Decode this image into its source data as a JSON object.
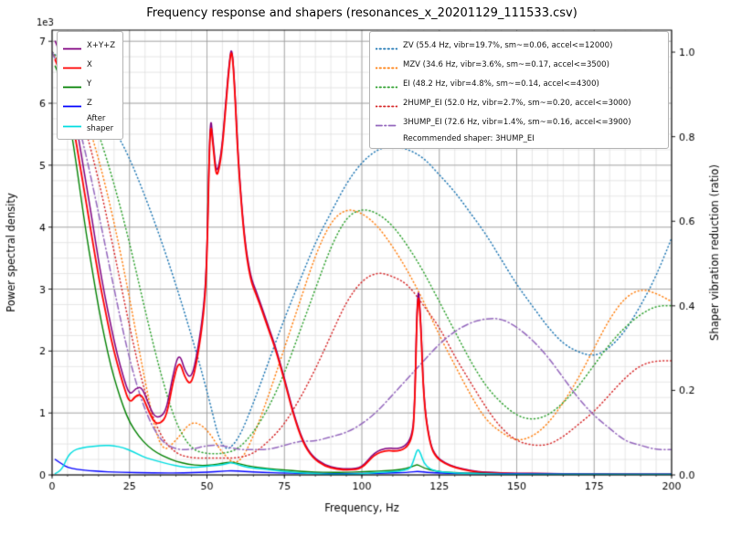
{
  "title": "Frequency response and shapers (resonances_x_20201129_111533.csv)",
  "axes": {
    "x": {
      "label": "Frequency, Hz",
      "min": 0,
      "max": 200,
      "minor_step": 5,
      "tick_values": [
        0,
        25,
        50,
        75,
        100,
        125,
        150,
        175,
        200
      ],
      "tick_labels": [
        "0",
        "25",
        "50",
        "75",
        "100",
        "125",
        "150",
        "175",
        "200"
      ]
    },
    "y_left": {
      "label": "Power spectral density",
      "offset_text": "1e3",
      "min": 0,
      "max": 7180,
      "minor_step": 250,
      "tick_values": [
        0,
        1000,
        2000,
        3000,
        4000,
        5000,
        6000,
        7000
      ],
      "tick_labels": [
        "0",
        "1",
        "2",
        "3",
        "4",
        "5",
        "6",
        "7"
      ]
    },
    "y_right": {
      "label": "Shaper vibration reduction (ratio)",
      "min": 0,
      "max": 1.052,
      "tick_values": [
        0,
        0.2,
        0.4,
        0.6,
        0.8,
        1.0
      ],
      "tick_labels": [
        "0.0",
        "0.2",
        "0.4",
        "0.6",
        "0.8",
        "1.0"
      ]
    }
  },
  "legend_psd": {
    "items": [
      {
        "label": "X+Y+Z",
        "color": "#800080",
        "dash": "solid"
      },
      {
        "label": "X",
        "color": "#ff0000",
        "dash": "solid"
      },
      {
        "label": "Y",
        "color": "#008000",
        "dash": "solid"
      },
      {
        "label": "Z",
        "color": "#0000ff",
        "dash": "solid"
      },
      {
        "label": "After\nshaper",
        "color": "#00dde0",
        "dash": "solid"
      }
    ]
  },
  "legend_shapers": {
    "items": [
      {
        "label": "ZV (55.4 Hz, vibr=19.7%, sm~=0.06, accel<=12000)",
        "color": "#1f77b4",
        "dash": "dotted"
      },
      {
        "label": "MZV (34.6 Hz, vibr=3.6%, sm~=0.17, accel<=3500)",
        "color": "#ff7f0e",
        "dash": "dotted"
      },
      {
        "label": "EI (48.2 Hz, vibr=4.8%, sm~=0.14, accel<=4300)",
        "color": "#2ca02c",
        "dash": "dotted"
      },
      {
        "label": "2HUMP_EI (52.0 Hz, vibr=2.7%, sm~=0.20, accel<=3000)",
        "color": "#d62728",
        "dash": "dotted"
      },
      {
        "label": "3HUMP_EI (72.6 Hz, vibr=1.4%, sm~=0.16, accel<=3900)",
        "color": "#9467bd",
        "dash": "dashdot"
      }
    ],
    "footer": "Recommended shaper: 3HUMP_EI"
  },
  "chart_data": {
    "type": "line",
    "title": "Frequency response and shapers (resonances_x_20201129_111533.csv)",
    "xlabel": "Frequency, Hz",
    "ylabel_left": "Power spectral density (1e3)",
    "ylabel_right": "Shaper vibration reduction (ratio)",
    "xlim": [
      0,
      200
    ],
    "ylim_left": [
      0,
      7180
    ],
    "ylim_right": [
      0,
      1.052
    ],
    "grid": "major+minor",
    "series": [
      {
        "name": "ZV",
        "axis": "right",
        "color": "#1f77b4",
        "dash": "dotted",
        "width": 1.5,
        "x": [
          0,
          5,
          10,
          15,
          20,
          25,
          30,
          35,
          40,
          45,
          50,
          55,
          60,
          65,
          70,
          75,
          80,
          85,
          90,
          95,
          100,
          105,
          110,
          115,
          120,
          125,
          130,
          135,
          140,
          145,
          150,
          155,
          160,
          165,
          170,
          175,
          180,
          185,
          190,
          195,
          200
        ],
        "y": [
          1.0,
          0.97,
          0.93,
          0.88,
          0.82,
          0.75,
          0.66,
          0.56,
          0.45,
          0.33,
          0.2,
          0.05,
          0.08,
          0.17,
          0.27,
          0.37,
          0.46,
          0.55,
          0.62,
          0.69,
          0.74,
          0.77,
          0.78,
          0.77,
          0.75,
          0.71,
          0.67,
          0.62,
          0.57,
          0.51,
          0.45,
          0.4,
          0.35,
          0.31,
          0.29,
          0.28,
          0.3,
          0.34,
          0.4,
          0.47,
          0.56
        ]
      },
      {
        "name": "MZV",
        "axis": "right",
        "color": "#ff7f0e",
        "dash": "dotted",
        "width": 1.5,
        "x": [
          0,
          5,
          10,
          15,
          20,
          25,
          30,
          35,
          40,
          45,
          50,
          55,
          60,
          65,
          70,
          75,
          80,
          85,
          90,
          95,
          100,
          105,
          110,
          115,
          120,
          125,
          130,
          135,
          140,
          145,
          150,
          155,
          160,
          165,
          170,
          175,
          180,
          185,
          190,
          195,
          200
        ],
        "y": [
          1.0,
          0.95,
          0.87,
          0.75,
          0.6,
          0.42,
          0.22,
          0.05,
          0.08,
          0.13,
          0.11,
          0.05,
          0.02,
          0.09,
          0.19,
          0.3,
          0.41,
          0.52,
          0.6,
          0.63,
          0.62,
          0.59,
          0.54,
          0.48,
          0.41,
          0.33,
          0.26,
          0.19,
          0.13,
          0.1,
          0.08,
          0.09,
          0.12,
          0.17,
          0.23,
          0.3,
          0.37,
          0.42,
          0.44,
          0.43,
          0.41
        ]
      },
      {
        "name": "EI",
        "axis": "right",
        "color": "#2ca02c",
        "dash": "dotted",
        "width": 1.5,
        "x": [
          0,
          5,
          10,
          15,
          20,
          25,
          30,
          35,
          40,
          45,
          50,
          55,
          60,
          65,
          70,
          75,
          80,
          85,
          90,
          95,
          100,
          105,
          110,
          115,
          120,
          125,
          130,
          135,
          140,
          145,
          150,
          155,
          160,
          165,
          170,
          175,
          180,
          185,
          190,
          195,
          200
        ],
        "y": [
          1.0,
          0.96,
          0.9,
          0.81,
          0.69,
          0.55,
          0.39,
          0.24,
          0.12,
          0.06,
          0.05,
          0.05,
          0.06,
          0.1,
          0.16,
          0.24,
          0.34,
          0.44,
          0.54,
          0.61,
          0.63,
          0.62,
          0.59,
          0.54,
          0.48,
          0.41,
          0.34,
          0.27,
          0.21,
          0.17,
          0.14,
          0.13,
          0.14,
          0.17,
          0.21,
          0.26,
          0.31,
          0.35,
          0.38,
          0.4,
          0.4
        ]
      },
      {
        "name": "2HUMP_EI",
        "axis": "right",
        "color": "#d62728",
        "dash": "dotted",
        "width": 1.5,
        "x": [
          0,
          5,
          10,
          15,
          20,
          25,
          30,
          35,
          40,
          45,
          50,
          55,
          60,
          65,
          70,
          75,
          80,
          85,
          90,
          95,
          100,
          105,
          110,
          115,
          120,
          125,
          130,
          135,
          140,
          145,
          150,
          155,
          160,
          165,
          170,
          175,
          180,
          185,
          190,
          195,
          200
        ],
        "y": [
          1.0,
          0.94,
          0.84,
          0.7,
          0.53,
          0.35,
          0.19,
          0.09,
          0.05,
          0.04,
          0.04,
          0.04,
          0.04,
          0.05,
          0.08,
          0.12,
          0.18,
          0.25,
          0.33,
          0.41,
          0.46,
          0.48,
          0.47,
          0.45,
          0.4,
          0.35,
          0.28,
          0.22,
          0.16,
          0.11,
          0.08,
          0.07,
          0.07,
          0.09,
          0.12,
          0.15,
          0.19,
          0.23,
          0.26,
          0.27,
          0.27
        ]
      },
      {
        "name": "3HUMP_EI",
        "axis": "right",
        "color": "#9467bd",
        "dash": "dashdot",
        "width": 1.5,
        "x": [
          0,
          5,
          10,
          15,
          20,
          25,
          30,
          35,
          40,
          45,
          50,
          55,
          60,
          65,
          70,
          75,
          80,
          85,
          90,
          95,
          100,
          105,
          110,
          115,
          120,
          125,
          130,
          135,
          140,
          145,
          150,
          155,
          160,
          165,
          170,
          175,
          180,
          185,
          190,
          195,
          200
        ],
        "y": [
          1.0,
          0.92,
          0.79,
          0.62,
          0.44,
          0.27,
          0.15,
          0.08,
          0.06,
          0.06,
          0.07,
          0.07,
          0.06,
          0.06,
          0.06,
          0.07,
          0.08,
          0.08,
          0.09,
          0.1,
          0.12,
          0.15,
          0.19,
          0.23,
          0.27,
          0.31,
          0.34,
          0.36,
          0.37,
          0.37,
          0.35,
          0.32,
          0.28,
          0.23,
          0.18,
          0.14,
          0.11,
          0.08,
          0.07,
          0.06,
          0.06
        ]
      },
      {
        "name": "X+Y+Z",
        "axis": "left",
        "color": "#800080",
        "dash": "solid",
        "width": 1.5,
        "x": [
          1,
          3,
          5,
          7,
          9,
          11,
          13,
          15,
          17,
          19,
          21,
          23,
          25,
          27,
          29,
          31,
          33,
          35,
          37,
          39,
          41,
          43,
          45,
          47,
          49,
          50,
          51,
          52,
          53,
          54,
          55,
          56,
          57,
          58,
          59,
          60,
          62,
          64,
          66,
          68,
          70,
          72,
          75,
          78,
          81,
          84,
          88,
          92,
          96,
          100,
          104,
          108,
          111,
          114,
          116,
          117,
          118,
          119,
          120,
          122,
          124,
          127,
          130,
          135,
          140,
          150,
          160,
          180,
          200
        ],
        "y": [
          7000,
          6800,
          6400,
          5900,
          5300,
          4700,
          4100,
          3450,
          2900,
          2400,
          1950,
          1580,
          1280,
          1400,
          1420,
          1160,
          940,
          930,
          1060,
          1620,
          1990,
          1660,
          1550,
          2000,
          2700,
          3500,
          5900,
          5380,
          4870,
          5020,
          5370,
          5970,
          6570,
          6970,
          6270,
          5160,
          3860,
          3210,
          2950,
          2670,
          2370,
          2090,
          1570,
          980,
          545,
          300,
          160,
          105,
          95,
          118,
          365,
          440,
          420,
          460,
          610,
          960,
          3180,
          2560,
          1190,
          505,
          295,
          190,
          128,
          68,
          42,
          28,
          20,
          13,
          10
        ]
      },
      {
        "name": "X",
        "axis": "left",
        "color": "#ff0000",
        "dash": "solid",
        "width": 1.8,
        "x": [
          1,
          3,
          5,
          7,
          9,
          11,
          13,
          15,
          17,
          19,
          21,
          23,
          25,
          27,
          29,
          31,
          33,
          35,
          37,
          39,
          41,
          43,
          45,
          47,
          49,
          50,
          51,
          52,
          53,
          54,
          55,
          56,
          57,
          58,
          59,
          60,
          62,
          64,
          66,
          68,
          70,
          72,
          75,
          78,
          81,
          84,
          88,
          92,
          96,
          100,
          104,
          108,
          111,
          114,
          116,
          117,
          118,
          119,
          120,
          122,
          124,
          127,
          130,
          135,
          140,
          150,
          160,
          180,
          200
        ],
        "y": [
          6700,
          6500,
          6100,
          5600,
          5000,
          4400,
          3800,
          3200,
          2700,
          2200,
          1800,
          1450,
          1150,
          1280,
          1300,
          1050,
          840,
          830,
          950,
          1500,
          1870,
          1550,
          1450,
          1900,
          2600,
          3400,
          5800,
          5300,
          4800,
          4950,
          5300,
          5900,
          6500,
          6950,
          6200,
          5100,
          3800,
          3150,
          2900,
          2620,
          2330,
          2050,
          1530,
          950,
          520,
          280,
          140,
          90,
          80,
          100,
          330,
          400,
          380,
          420,
          560,
          900,
          3080,
          2500,
          1150,
          480,
          280,
          180,
          120,
          60,
          35,
          22,
          15,
          10,
          8
        ]
      },
      {
        "name": "Y",
        "axis": "left",
        "color": "#008000",
        "dash": "solid",
        "width": 1.4,
        "x": [
          1,
          3,
          5,
          7,
          9,
          11,
          13,
          15,
          17,
          19,
          21,
          23,
          25,
          28,
          31,
          34,
          37,
          40,
          44,
          48,
          52,
          55,
          58,
          61,
          65,
          70,
          75,
          80,
          85,
          90,
          95,
          100,
          105,
          110,
          114,
          117,
          118,
          120,
          124,
          128,
          135,
          145,
          160,
          180,
          200
        ],
        "y": [
          6600,
          6400,
          5900,
          5300,
          4600,
          3900,
          3300,
          2700,
          2200,
          1750,
          1400,
          1100,
          850,
          620,
          460,
          350,
          280,
          220,
          170,
          150,
          160,
          190,
          210,
          170,
          130,
          100,
          80,
          60,
          45,
          40,
          42,
          50,
          60,
          75,
          95,
          150,
          170,
          110,
          60,
          40,
          28,
          20,
          14,
          10,
          8
        ]
      },
      {
        "name": "Z",
        "axis": "left",
        "color": "#0000ff",
        "dash": "solid",
        "width": 1.4,
        "x": [
          1,
          3,
          5,
          8,
          12,
          16,
          20,
          25,
          30,
          35,
          40,
          45,
          50,
          55,
          58,
          62,
          68,
          75,
          85,
          95,
          105,
          115,
          118,
          122,
          130,
          145,
          165,
          200
        ],
        "y": [
          250,
          180,
          120,
          90,
          70,
          55,
          45,
          40,
          35,
          32,
          30,
          35,
          45,
          60,
          70,
          55,
          40,
          30,
          22,
          20,
          25,
          40,
          60,
          35,
          25,
          18,
          12,
          10
        ]
      },
      {
        "name": "After shaper",
        "axis": "left",
        "color": "#00dde0",
        "dash": "solid",
        "width": 1.5,
        "x": [
          1,
          3,
          5,
          7,
          9,
          11,
          14,
          17,
          20,
          23,
          26,
          29,
          32,
          35,
          38,
          41,
          44,
          47,
          50,
          53,
          55,
          57,
          58,
          60,
          63,
          66,
          70,
          75,
          80,
          85,
          90,
          95,
          100,
          104,
          108,
          112,
          115,
          116,
          117,
          118,
          119,
          120,
          122,
          125,
          130,
          140,
          150,
          170,
          200
        ],
        "y": [
          20,
          60,
          300,
          400,
          430,
          450,
          465,
          480,
          470,
          440,
          380,
          300,
          250,
          210,
          170,
          140,
          120,
          125,
          140,
          155,
          165,
          190,
          200,
          165,
          125,
          105,
          85,
          55,
          30,
          18,
          12,
          12,
          18,
          35,
          45,
          55,
          90,
          130,
          280,
          430,
          350,
          190,
          90,
          50,
          28,
          15,
          10,
          8,
          8
        ]
      }
    ]
  }
}
